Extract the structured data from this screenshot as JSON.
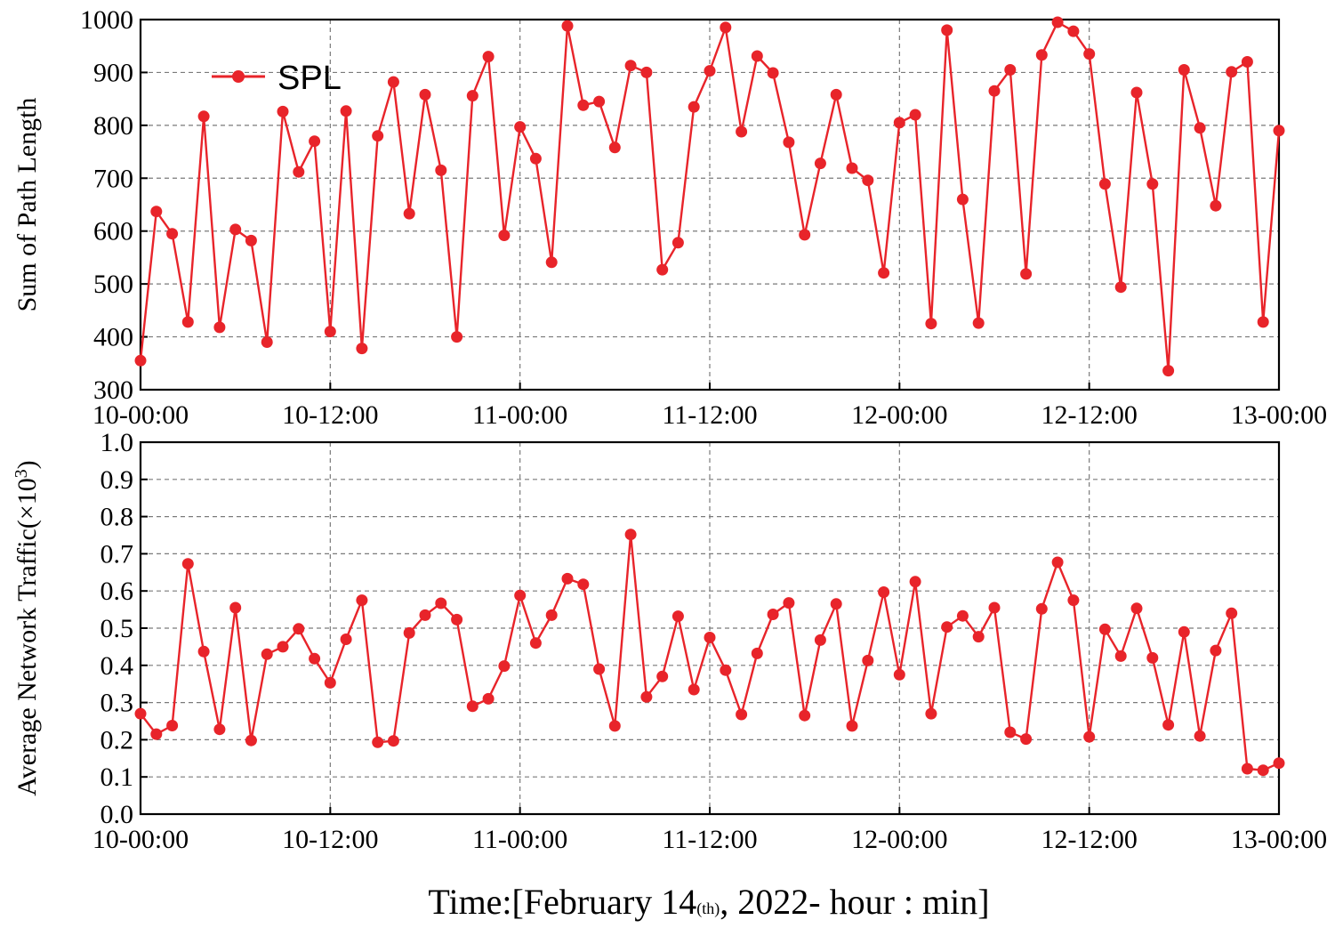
{
  "colors": {
    "series": "#e8242a",
    "grid": "#7a7a7a",
    "axis": "#000000"
  },
  "xlabel": {
    "prefix": "Time:[February 14",
    "sub": "(th)",
    "suffix": ", 2022- hour : min]"
  },
  "chart_data": [
    {
      "type": "line",
      "title": "",
      "ylabel": "Sum of  Path Length",
      "ylim": [
        300,
        1000
      ],
      "yticks": [
        "300",
        "400",
        "500",
        "600",
        "700",
        "800",
        "900",
        "1000"
      ],
      "xticks": [
        "10-00:00",
        "10-12:00",
        "11-00:00",
        "11-12:00",
        "12-00:00",
        "12-12:00",
        "13-00:00"
      ],
      "grid": true,
      "legend": {
        "position": "top-left",
        "entries": [
          "SPL"
        ]
      },
      "series": [
        {
          "name": "SPL",
          "values": [
            355,
            637,
            595,
            428,
            817,
            418,
            603,
            582,
            390,
            826,
            712,
            770,
            410,
            827,
            378,
            780,
            882,
            633,
            858,
            715,
            400,
            856,
            930,
            592,
            797,
            737,
            541,
            988,
            838,
            845,
            758,
            913,
            900,
            527,
            578,
            835,
            903,
            985,
            788,
            931,
            899,
            768,
            593,
            728,
            858,
            719,
            696,
            521,
            805,
            820,
            425,
            980,
            660,
            426,
            865,
            905,
            519,
            933,
            995,
            978,
            935,
            689,
            494,
            862,
            689,
            336,
            905,
            795,
            648,
            901,
            920,
            428,
            790
          ]
        }
      ]
    },
    {
      "type": "line",
      "title": "",
      "ylabel": "Average Network Traffic(×10",
      "ylabel_sup": "3",
      "ylabel_end": ")",
      "ylim": [
        0.0,
        1.0
      ],
      "yticks": [
        "0.0",
        "0.1",
        "0.2",
        "0.3",
        "0.4",
        "0.5",
        "0.6",
        "0.7",
        "0.8",
        "0.9",
        "1.0"
      ],
      "xticks": [
        "10-00:00",
        "10-12:00",
        "11-00:00",
        "11-12:00",
        "12-00:00",
        "12-12:00",
        "13-00:00"
      ],
      "grid": true,
      "series": [
        {
          "name": "SPL",
          "values": [
            0.27,
            0.215,
            0.238,
            0.673,
            0.437,
            0.228,
            0.555,
            0.198,
            0.43,
            0.45,
            0.498,
            0.418,
            0.353,
            0.47,
            0.575,
            0.193,
            0.197,
            0.487,
            0.535,
            0.567,
            0.523,
            0.29,
            0.31,
            0.398,
            0.588,
            0.46,
            0.535,
            0.633,
            0.618,
            0.39,
            0.237,
            0.752,
            0.315,
            0.37,
            0.532,
            0.335,
            0.475,
            0.387,
            0.268,
            0.432,
            0.537,
            0.568,
            0.265,
            0.468,
            0.565,
            0.237,
            0.413,
            0.597,
            0.375,
            0.625,
            0.27,
            0.503,
            0.533,
            0.477,
            0.555,
            0.22,
            0.202,
            0.552,
            0.677,
            0.575,
            0.208,
            0.497,
            0.425,
            0.553,
            0.42,
            0.24,
            0.49,
            0.21,
            0.44,
            0.54,
            0.122,
            0.118,
            0.137
          ]
        }
      ]
    }
  ]
}
